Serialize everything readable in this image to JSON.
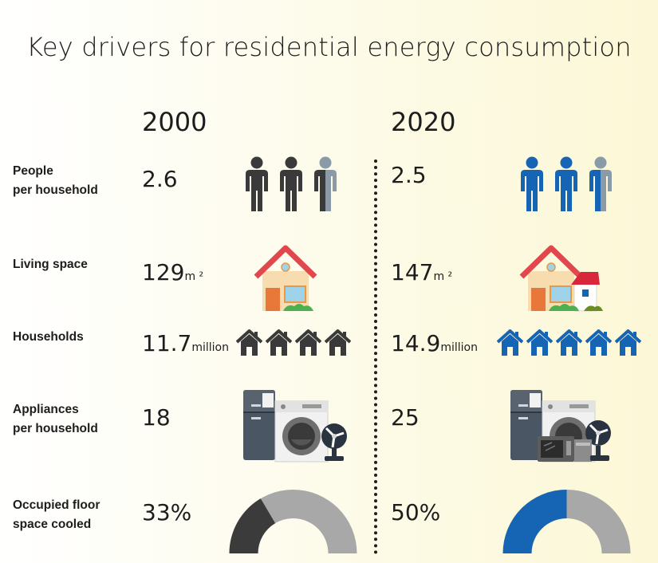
{
  "title": "Key drivers for residential energy consumption",
  "years": [
    "2000",
    "2020"
  ],
  "rows": [
    {
      "label": "People\nper household",
      "v2000": "2.6",
      "v2020": "2.5",
      "unit": ""
    },
    {
      "label": "Living space",
      "v2000": "129",
      "v2020": "147",
      "unit": "m ²"
    },
    {
      "label": "Households",
      "v2000": "11.7",
      "v2020": "14.9",
      "unit": "million"
    },
    {
      "label": "Appliances\nper household",
      "v2000": "18",
      "v2020": "25",
      "unit": ""
    },
    {
      "label": "Occupied floor\nspace cooled",
      "v2000": "33%",
      "v2020": "50%",
      "unit": ""
    }
  ],
  "cooled_fraction": {
    "2000": 0.33,
    "2020": 0.5
  },
  "house_icon_counts": {
    "2000": 4,
    "2020": 5
  },
  "colors": {
    "text": "#1d1d1d",
    "dark_icon": "#3a3a3a",
    "blue_icon": "#1565b4",
    "gray": "#a8a8a8",
    "dark_gauge": "#3b3b3b",
    "blue_gauge": "#1565b4"
  },
  "icons": {
    "people": "people-icon",
    "house": "house-icon",
    "households": "home-icon",
    "appliances": "appliances-icon",
    "cooling": "donut-gauge"
  }
}
